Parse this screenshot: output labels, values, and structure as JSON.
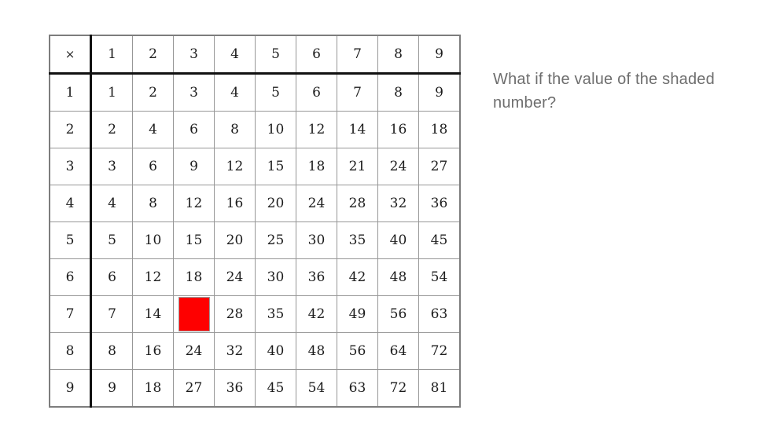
{
  "question": {
    "text": "What if the value of the shaded number?"
  },
  "table": {
    "corner_symbol": "×",
    "column_headers": [
      "1",
      "2",
      "3",
      "4",
      "5",
      "6",
      "7",
      "8",
      "9"
    ],
    "rows": [
      {
        "header": "1",
        "cells": [
          "1",
          "2",
          "3",
          "4",
          "5",
          "6",
          "7",
          "8",
          "9"
        ]
      },
      {
        "header": "2",
        "cells": [
          "2",
          "4",
          "6",
          "8",
          "10",
          "12",
          "14",
          "16",
          "18"
        ]
      },
      {
        "header": "3",
        "cells": [
          "3",
          "6",
          "9",
          "12",
          "15",
          "18",
          "21",
          "24",
          "27"
        ]
      },
      {
        "header": "4",
        "cells": [
          "4",
          "8",
          "12",
          "16",
          "20",
          "24",
          "28",
          "32",
          "36"
        ]
      },
      {
        "header": "5",
        "cells": [
          "5",
          "10",
          "15",
          "20",
          "25",
          "30",
          "35",
          "40",
          "45"
        ]
      },
      {
        "header": "6",
        "cells": [
          "6",
          "12",
          "18",
          "24",
          "30",
          "36",
          "42",
          "48",
          "54"
        ]
      },
      {
        "header": "7",
        "cells": [
          "7",
          "14",
          "",
          "28",
          "35",
          "42",
          "49",
          "56",
          "63"
        ]
      },
      {
        "header": "8",
        "cells": [
          "8",
          "16",
          "24",
          "32",
          "40",
          "48",
          "56",
          "64",
          "72"
        ]
      },
      {
        "header": "9",
        "cells": [
          "9",
          "18",
          "27",
          "36",
          "45",
          "54",
          "63",
          "72",
          "81"
        ]
      }
    ],
    "shaded_cell": {
      "row_header": "7",
      "column_header": "3",
      "color": "#fe0000"
    }
  }
}
